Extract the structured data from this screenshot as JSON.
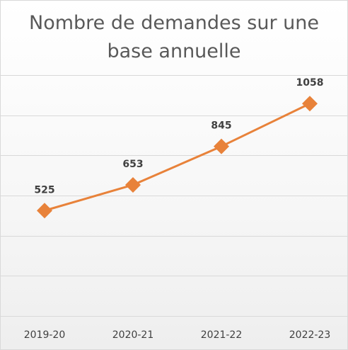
{
  "chart_data": {
    "type": "line",
    "title": "Nombre de demandes sur une base annuelle",
    "categories": [
      "2019-20",
      "2020-21",
      "2021-22",
      "2022-23"
    ],
    "series": [
      {
        "values": [
          525,
          653,
          845,
          1058
        ],
        "color": "#e8823a",
        "marker": "diamond"
      }
    ],
    "ylim": [
      0,
      1200
    ],
    "grid": true,
    "legend": "none",
    "data_labels": [
      "525",
      "653",
      "845",
      "1058"
    ]
  }
}
